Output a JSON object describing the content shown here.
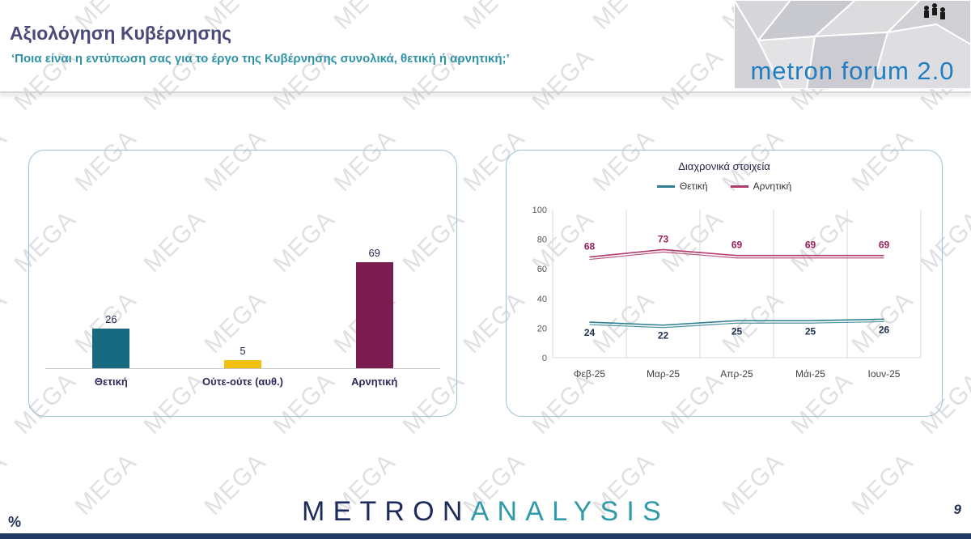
{
  "watermark": {
    "text": "MEGA"
  },
  "header": {
    "title": "Αξιολόγηση Κυβέρνησης",
    "subtitle": "‘Ποια είναι η εντύπωση σας για το έργο της Κυβέρνησης συνολικά, θετική ή αρνητική;’",
    "logo": {
      "text": "metron forum 2.0"
    }
  },
  "chart_data": [
    {
      "type": "bar",
      "title": "",
      "categories": [
        "Θετική",
        "Ούτε-ούτε (αυθ.)",
        "Αρνητική"
      ],
      "values": [
        26,
        5,
        69
      ],
      "colors": [
        "#16697f",
        "#f2c011",
        "#7b1d4e"
      ],
      "ylim": [
        0,
        100
      ],
      "value_labels": true
    },
    {
      "type": "line",
      "title": "Διαχρονικά στοιχεία",
      "categories": [
        "Φεβ-25",
        "Μαρ-25",
        "Απρ-25",
        "Μάι-25",
        "Ιουν-25"
      ],
      "series": [
        {
          "name": "Θετική",
          "values": [
            24,
            22,
            25,
            25,
            26
          ],
          "color": "#2f7f93",
          "label_color": "#1f3053",
          "label_position": "below"
        },
        {
          "name": "Αρνητική",
          "values": [
            68,
            73,
            69,
            69,
            69
          ],
          "color": "#b23a6c",
          "label_color": "#9c1f5a",
          "label_position": "above"
        }
      ],
      "ylim": [
        0,
        100
      ],
      "yticks": [
        0,
        20,
        40,
        60,
        80,
        100
      ],
      "legend_position": "top",
      "grid": "vertical"
    }
  ],
  "footer": {
    "percent_label": "%",
    "brand_part1": "METRON",
    "brand_part2": "ANALYSIS",
    "page_number": "9"
  }
}
